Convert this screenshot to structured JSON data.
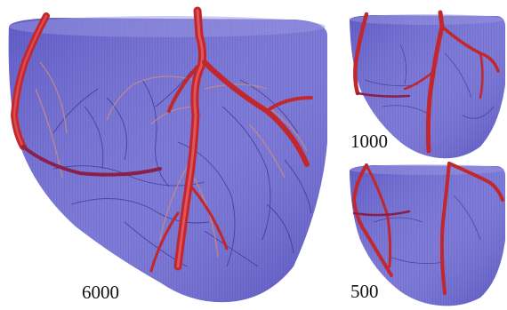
{
  "panels": [
    {
      "label": "6000"
    },
    {
      "label": "1000"
    },
    {
      "label": "500"
    }
  ],
  "colors": {
    "background": "#ffffff",
    "tissue": "#5a56c8",
    "vessel": "#c1272d",
    "fine_vessel": "#3a2f8a"
  }
}
